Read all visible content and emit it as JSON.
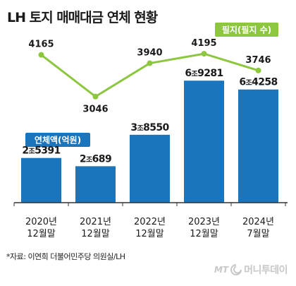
{
  "title": "LH 토지 매매대금 연체 현황",
  "source": "*자료: 이연희 더불어민주당 의원실/LH",
  "watermark": {
    "brand_mark": "MT",
    "brand_name": "머니투데이"
  },
  "colors": {
    "bar": "#1b75bc",
    "line": "#8dc63f",
    "bar_legend_bg": "#1b75bc",
    "line_legend_bg": "#8dc63f",
    "text": "#1a1a1a"
  },
  "chart_data": {
    "type": "bar",
    "categories": [
      [
        "2020년",
        "12월말"
      ],
      [
        "2021년",
        "12월말"
      ],
      [
        "2022년",
        "12월말"
      ],
      [
        "2023년",
        "12월말"
      ],
      [
        "2024년",
        "7월말"
      ]
    ],
    "series": [
      {
        "name": "연체액(억원)",
        "type": "bar",
        "values": [
          25391,
          20689,
          38550,
          69281,
          64258
        ],
        "labels": [
          {
            "big": "2",
            "unit": "조",
            "rest": "5391"
          },
          {
            "big": "2",
            "unit": "조",
            "rest": "689"
          },
          {
            "big": "3",
            "unit": "조",
            "rest": "8550"
          },
          {
            "big": "6",
            "unit": "조",
            "rest": "9281"
          },
          {
            "big": "6",
            "unit": "조",
            "rest": "4258"
          }
        ]
      },
      {
        "name": "필지(필지 수)",
        "type": "line",
        "values": [
          4165,
          3046,
          3940,
          4195,
          3746
        ],
        "labels": [
          "4165",
          "3046",
          "3940",
          "4195",
          "3746"
        ]
      }
    ],
    "ylim": [
      0,
      85000
    ],
    "ylim_secondary": [
      2700,
      4500
    ],
    "grid": false,
    "legend": "inline"
  }
}
